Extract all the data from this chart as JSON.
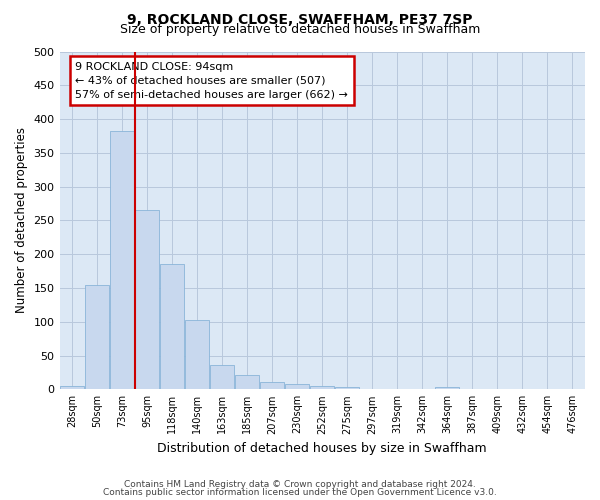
{
  "title": "9, ROCKLAND CLOSE, SWAFFHAM, PE37 7SP",
  "subtitle": "Size of property relative to detached houses in Swaffham",
  "xlabel": "Distribution of detached houses by size in Swaffham",
  "ylabel": "Number of detached properties",
  "footer1": "Contains HM Land Registry data © Crown copyright and database right 2024.",
  "footer2": "Contains public sector information licensed under the Open Government Licence v3.0.",
  "bin_labels": [
    "28sqm",
    "50sqm",
    "73sqm",
    "95sqm",
    "118sqm",
    "140sqm",
    "163sqm",
    "185sqm",
    "207sqm",
    "230sqm",
    "252sqm",
    "275sqm",
    "297sqm",
    "319sqm",
    "342sqm",
    "364sqm",
    "387sqm",
    "409sqm",
    "432sqm",
    "454sqm",
    "476sqm"
  ],
  "bar_values": [
    5,
    155,
    383,
    265,
    185,
    102,
    36,
    21,
    11,
    8,
    5,
    3,
    0,
    0,
    0,
    3,
    0,
    0,
    0,
    0,
    0
  ],
  "bar_color": "#c8d8ee",
  "bar_edge_color": "#8ab4d8",
  "property_line_color": "#cc0000",
  "annotation_line1": "9 ROCKLAND CLOSE: 94sqm",
  "annotation_line2": "← 43% of detached houses are smaller (507)",
  "annotation_line3": "57% of semi-detached houses are larger (662) →",
  "annotation_box_color": "#ffffff",
  "annotation_box_edge": "#cc0000",
  "ylim": [
    0,
    500
  ],
  "yticks": [
    0,
    50,
    100,
    150,
    200,
    250,
    300,
    350,
    400,
    450,
    500
  ],
  "grid_color": "#b8c8dc",
  "background_color": "#ffffff",
  "plot_bg_color": "#dce8f5"
}
